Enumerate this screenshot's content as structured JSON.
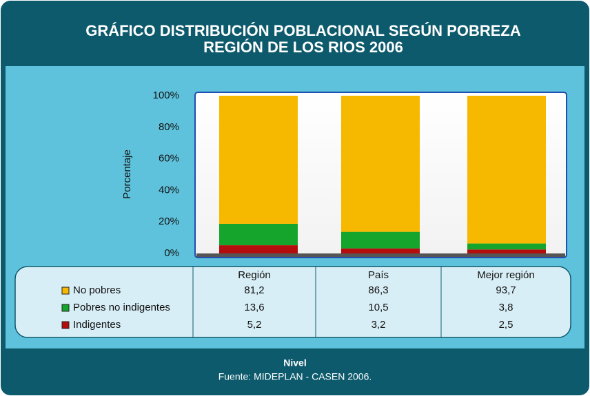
{
  "chart_data": {
    "type": "stacked_bar",
    "title": "GRÁFICO DISTRIBUCIÓN POBLACIONAL SEGÚN POBREZA",
    "subtitle": "REGIÓN DE LOS RIOS 2006",
    "y_label": "Porcentaje",
    "x_label": "Nivel",
    "source": "Fuente: MIDEPLAN - CASEN 2006.",
    "categories": [
      "Región",
      "País",
      "Mejor región"
    ],
    "series": [
      {
        "name": "No pobres",
        "color": "#f7b900",
        "values": [
          81.2,
          86.3,
          93.7
        ],
        "value_labels": [
          "81,2",
          "86,3",
          "93,7"
        ]
      },
      {
        "name": "Pobres no indigentes",
        "color": "#16a52c",
        "values": [
          13.6,
          10.5,
          3.8
        ],
        "value_labels": [
          "13,6",
          "10,5",
          "3,8"
        ]
      },
      {
        "name": "Indigentes",
        "color": "#b30d0d",
        "values": [
          5.2,
          3.2,
          2.5
        ],
        "value_labels": [
          "5,2",
          "3,2",
          "2,5"
        ]
      }
    ],
    "ylim": [
      0,
      100
    ],
    "yticks": [
      {
        "value": 0,
        "label": "0%"
      },
      {
        "value": 20,
        "label": "20%"
      },
      {
        "value": 40,
        "label": "40%"
      },
      {
        "value": 60,
        "label": "60%"
      },
      {
        "value": 80,
        "label": "80%"
      },
      {
        "value": 100,
        "label": "100%"
      }
    ],
    "grid": false
  }
}
